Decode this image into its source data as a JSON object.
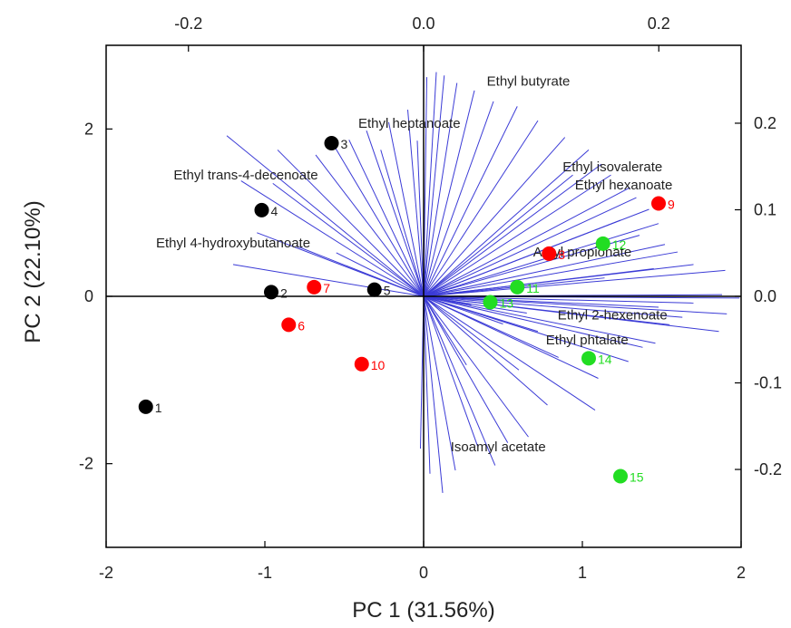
{
  "chart_data": {
    "type": "scatter",
    "subtype": "biplot",
    "xlabel": "PC 1 (31.56%)",
    "ylabel": "PC 2 (22.10%)",
    "xlim": [
      -2,
      2
    ],
    "ylim": [
      -3,
      3
    ],
    "xticks": [
      -2,
      -1,
      0,
      1,
      2
    ],
    "yticks": [
      -2,
      0,
      2
    ],
    "top_axis": {
      "range": [
        -0.27,
        0.27
      ],
      "ticks": [
        -0.2,
        0.0,
        0.2
      ],
      "labels": [
        "-0.2",
        "0.0",
        "0.2"
      ]
    },
    "right_axis": {
      "range": [
        -0.29,
        0.29
      ],
      "ticks": [
        -0.2,
        -0.1,
        0.0,
        0.1,
        0.2
      ],
      "labels": [
        "-0.2",
        "-0.1",
        "0.0",
        "0.1",
        "0.2"
      ]
    },
    "grid": false,
    "colors": {
      "group_black": "#000000",
      "group_red": "#ff0000",
      "group_green": "#22dd22",
      "loadings": "#3b3bd6"
    },
    "series": [
      {
        "color": "#000000",
        "points": [
          {
            "label": "1",
            "x": -1.75,
            "y": -1.32
          },
          {
            "label": "2",
            "x": -0.96,
            "y": 0.05
          },
          {
            "label": "3",
            "x": -0.58,
            "y": 1.83
          },
          {
            "label": "4",
            "x": -1.02,
            "y": 1.03
          },
          {
            "label": "5",
            "x": -0.31,
            "y": 0.08
          }
        ]
      },
      {
        "color": "#ff0000",
        "points": [
          {
            "label": "6",
            "x": -0.85,
            "y": -0.34
          },
          {
            "label": "7",
            "x": -0.69,
            "y": 0.11
          },
          {
            "label": "8",
            "x": 0.79,
            "y": 0.51
          },
          {
            "label": "9",
            "x": 1.48,
            "y": 1.11
          },
          {
            "label": "10",
            "x": -0.39,
            "y": -0.81
          }
        ]
      },
      {
        "color": "#22dd22",
        "points": [
          {
            "label": "11",
            "x": 0.59,
            "y": 0.11
          },
          {
            "label": "12",
            "x": 1.13,
            "y": 0.63
          },
          {
            "label": "13",
            "x": 0.42,
            "y": -0.07
          },
          {
            "label": "14",
            "x": 1.04,
            "y": -0.74
          },
          {
            "label": "15",
            "x": 1.24,
            "y": -2.15
          }
        ]
      }
    ],
    "loading_labels": [
      {
        "text": "Ethyl butyrate",
        "x": 0.66,
        "y": 2.57
      },
      {
        "text": "Ethyl heptanoate",
        "x": -0.09,
        "y": 2.07
      },
      {
        "text": "Ethyl trans-4-decenoate",
        "x": -1.12,
        "y": 1.45
      },
      {
        "text": "Ethyl isovalerate",
        "x": 1.19,
        "y": 1.55
      },
      {
        "text": "Ethyl hexanoate",
        "x": 1.26,
        "y": 1.33
      },
      {
        "text": "Ethyl 4-hydroxybutanoate",
        "x": -1.2,
        "y": 0.64
      },
      {
        "text": "Amyl propionate",
        "x": 1.0,
        "y": 0.53
      },
      {
        "text": "Ethyl 2-hexenoate",
        "x": 1.19,
        "y": -0.22
      },
      {
        "text": "Ethyl phtalate",
        "x": 1.03,
        "y": -0.52
      },
      {
        "text": "Isoamyl acetate",
        "x": 0.47,
        "y": -1.8
      }
    ],
    "loadings": [
      [
        0.02,
        2.62
      ],
      [
        0.08,
        2.68
      ],
      [
        0.13,
        2.64
      ],
      [
        0.21,
        2.55
      ],
      [
        0.32,
        2.46
      ],
      [
        0.44,
        2.33
      ],
      [
        0.59,
        2.27
      ],
      [
        -0.1,
        2.23
      ],
      [
        -0.22,
        2.08
      ],
      [
        -0.36,
        1.98
      ],
      [
        -0.47,
        1.87
      ],
      [
        -0.58,
        1.85
      ],
      [
        -0.68,
        1.69
      ],
      [
        -0.95,
        1.35
      ],
      [
        -1.15,
        1.38
      ],
      [
        -1.24,
        1.92
      ],
      [
        -0.92,
        1.75
      ],
      [
        -0.27,
        1.75
      ],
      [
        -0.04,
        1.86
      ],
      [
        -0.8,
        0.6
      ],
      [
        -1.05,
        0.76
      ],
      [
        -1.2,
        0.38
      ],
      [
        -0.55,
        0.52
      ],
      [
        0.72,
        2.1
      ],
      [
        0.89,
        1.9
      ],
      [
        0.94,
        1.45
      ],
      [
        1.04,
        1.75
      ],
      [
        1.12,
        1.58
      ],
      [
        1.18,
        1.45
      ],
      [
        1.3,
        1.3
      ],
      [
        1.34,
        1.18
      ],
      [
        1.42,
        1.04
      ],
      [
        1.24,
        0.91
      ],
      [
        1.48,
        0.87
      ],
      [
        1.36,
        0.73
      ],
      [
        1.52,
        0.62
      ],
      [
        1.6,
        0.53
      ],
      [
        1.7,
        0.38
      ],
      [
        1.9,
        0.31
      ],
      [
        1.45,
        0.33
      ],
      [
        1.14,
        0.22
      ],
      [
        1.88,
        0.02
      ],
      [
        1.99,
        -0.02
      ],
      [
        1.7,
        -0.08
      ],
      [
        1.48,
        -0.13
      ],
      [
        1.91,
        -0.21
      ],
      [
        1.63,
        -0.25
      ],
      [
        1.55,
        -0.34
      ],
      [
        1.86,
        -0.42
      ],
      [
        1.46,
        -0.56
      ],
      [
        1.38,
        -0.61
      ],
      [
        1.29,
        -0.78
      ],
      [
        1.1,
        -0.98
      ],
      [
        1.08,
        -1.36
      ],
      [
        0.78,
        -1.3
      ],
      [
        0.66,
        -1.68
      ],
      [
        0.53,
        -1.75
      ],
      [
        0.45,
        -2.02
      ],
      [
        0.34,
        -1.79
      ],
      [
        0.2,
        -2.08
      ],
      [
        0.12,
        -2.35
      ],
      [
        0.04,
        -2.12
      ],
      [
        -0.02,
        -1.82
      ],
      [
        0.27,
        -0.82
      ],
      [
        0.6,
        -0.88
      ],
      [
        0.85,
        -0.73
      ],
      [
        0.72,
        -0.42
      ],
      [
        0.5,
        -0.33
      ],
      [
        0.65,
        -0.2
      ],
      [
        0.3,
        -0.1
      ]
    ]
  }
}
